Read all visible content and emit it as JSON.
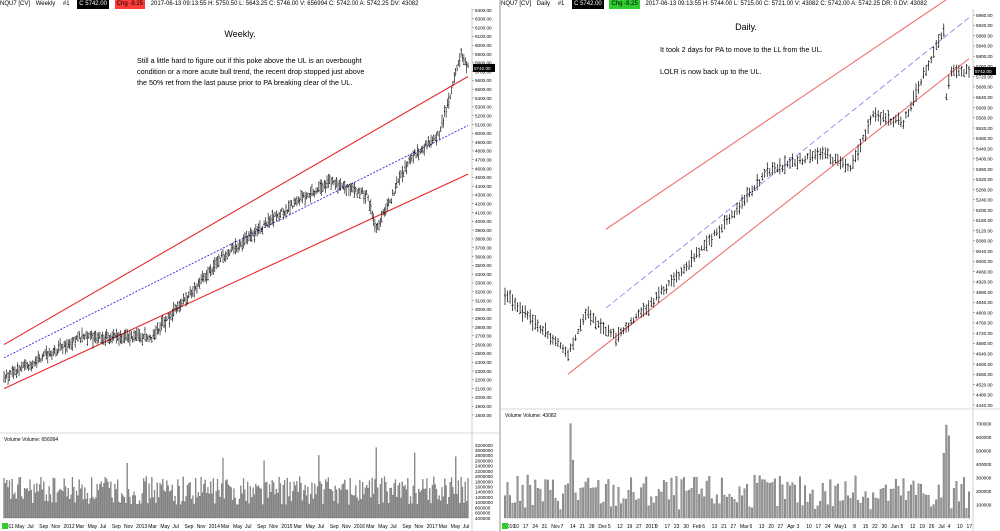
{
  "colors": {
    "channel_line": "#e8262b",
    "channel_line_daily": "#f07070",
    "midline_weekly": "#2a2ad6",
    "midline_daily": "#8a8af0",
    "bars": "#000000",
    "volume": "#9a9a9a",
    "price_badge": "#000000",
    "chip_red": "#ff3b3b",
    "chip_green": "#2ecc2e"
  },
  "weekly": {
    "header": {
      "symbol": "NQU7 [CV]",
      "timeframe": "Weekly",
      "chip1": "#1",
      "chip2": "C 5742.00",
      "chip3": "Chg -9.25",
      "stats": "2017-06-13 09:13:55  H: 5750.50  L: 5643.25  C: 5746.00  V: 656994  C: 5742.00  A: 5742.25  DV: 43082"
    },
    "annotation_title": "Weekly.",
    "annotation_lines": [
      "Still a little hard to figure out if this poke above the UL is an overbought",
      "condition or a more acute bull trend, the recent drop stopped just above",
      "the 50% ret from the last pause prior to PA breaking clear of the UL."
    ],
    "volume_label": "Volume  Volume: 656994",
    "last_price": "5742.00",
    "price_axis": {
      "min": 1800,
      "max": 6400,
      "step": 100
    },
    "volume_axis": {
      "labels": [
        "3200000",
        "3000000",
        "2800000",
        "2600000",
        "2400000",
        "2200000",
        "2000000",
        "1800000",
        "1600000",
        "1400000",
        "1200000",
        "1000000",
        "800000",
        "600000",
        "400000"
      ],
      "min": 400000,
      "max": 3200000
    },
    "x_labels": [
      "2011",
      "May",
      "Jul",
      "Sep",
      "Nov",
      "2012",
      "Mar",
      "May",
      "Jul",
      "Sep",
      "Nov",
      "2013",
      "Mar",
      "May",
      "Jul",
      "Sep",
      "Nov",
      "2014",
      "Mar",
      "May",
      "Jul",
      "Sep",
      "Nov",
      "2015",
      "Mar",
      "May",
      "Jul",
      "Sep",
      "Nov",
      "2016",
      "Mar",
      "May",
      "Jul",
      "Sep",
      "Nov",
      "2017",
      "Mar",
      "May",
      "Jul"
    ]
  },
  "daily": {
    "header": {
      "symbol": "NQU7 [CV]",
      "timeframe": "Daily",
      "chip1": "#1",
      "chip2": "C 5742.00",
      "chip3": "Chg -9.25",
      "stats": "2017-06-13 09:13:55  H: 5744.00  L: 5715.00  C: 5721.00  V: 43082  C: 5742.00  A: 5742.25  DR: 0  DV: 43082"
    },
    "annotation_title": "Daily.",
    "annotation_lines": [
      "It took 2 days for PA to move to the LL from the UL.",
      "",
      "LOLR is now back up to the UL."
    ],
    "volume_label": "Volume  Volume: 43082",
    "last_price": "5742.00",
    "price_axis": {
      "min": 4440,
      "max": 5980,
      "step": 40
    },
    "volume_axis": {
      "labels": [
        "700000",
        "600000",
        "500000",
        "400000",
        "300000",
        "200000",
        "100000"
      ],
      "min": 0,
      "max": 720000
    },
    "x_labels": [
      "2016",
      "10",
      "17",
      "24",
      "31",
      "Nov",
      "7",
      "14",
      "21",
      "28",
      "Dec",
      "5",
      "12",
      "19",
      "27",
      "2017",
      "9",
      "17",
      "23",
      "30",
      "Feb",
      "6",
      "13",
      "21",
      "27",
      "Mar",
      "6",
      "13",
      "20",
      "27",
      "Apr",
      "3",
      "10",
      "17",
      "24",
      "May",
      "1",
      "8",
      "15",
      "22",
      "30",
      "Jun",
      "5",
      "12",
      "19",
      "26",
      "Jul",
      "4",
      "10",
      "17"
    ]
  },
  "chart_data": [
    {
      "type": "candlestick",
      "title": "Weekly.",
      "timeframe": "Weekly",
      "x_range": [
        "2011",
        "Jul 2017"
      ],
      "ylim": [
        1800,
        6400
      ],
      "price_anchor_points": [
        {
          "x": "2011",
          "y": 2220
        },
        {
          "x": "Jan 2012",
          "y": 2680
        },
        {
          "x": "Jan 2013",
          "y": 2690
        },
        {
          "x": "Jan 2014",
          "y": 3600
        },
        {
          "x": "Jan 2015",
          "y": 4200
        },
        {
          "x": "Jul 2015",
          "y": 4450
        },
        {
          "x": "Jan 2016",
          "y": 4300
        },
        {
          "x": "Feb 2016",
          "y": 3900
        },
        {
          "x": "Jul 2016",
          "y": 4700
        },
        {
          "x": "Jan 2017",
          "y": 4990
        },
        {
          "x": "Jun 2017",
          "y": 5900
        },
        {
          "x": "Jun 2017 last",
          "y": 5742
        }
      ],
      "channel": {
        "upper": [
          {
            "x": "2011",
            "y": 2600
          },
          {
            "x": "Jun 2017",
            "y": 5600
          }
        ],
        "mid": [
          {
            "x": "2011",
            "y": 2450
          },
          {
            "x": "Jun 2017",
            "y": 5050
          }
        ],
        "lower": [
          {
            "x": "2011",
            "y": 2100
          },
          {
            "x": "Jun 2017",
            "y": 4500
          }
        ]
      },
      "volume_range": [
        400000,
        3200000
      ]
    },
    {
      "type": "candlestick",
      "title": "Daily.",
      "timeframe": "Daily",
      "x_range": [
        "Oct 2016",
        "Jul 2017"
      ],
      "ylim": [
        4440,
        5980
      ],
      "price_anchor_points": [
        {
          "x": "Oct 3 2016",
          "y": 4870
        },
        {
          "x": "Nov 4 2016",
          "y": 4640
        },
        {
          "x": "Nov 14 2016",
          "y": 4800
        },
        {
          "x": "Dec 1 2016",
          "y": 4700
        },
        {
          "x": "Jan 2 2017",
          "y": 4890
        },
        {
          "x": "Feb 1 2017",
          "y": 5110
        },
        {
          "x": "Mar 1 2017",
          "y": 5350
        },
        {
          "x": "Apr 1 2017",
          "y": 5420
        },
        {
          "x": "Apr 17 2017",
          "y": 5360
        },
        {
          "x": "May 1 2017",
          "y": 5570
        },
        {
          "x": "May 17 2017",
          "y": 5540
        },
        {
          "x": "Jun 8 2017",
          "y": 5910
        },
        {
          "x": "Jun 9 2017",
          "y": 5640
        },
        {
          "x": "Jun 13 2017",
          "y": 5742
        }
      ],
      "channel": {
        "upper": [
          {
            "x": "Oct 2016",
            "y": 4860
          },
          {
            "x": "Jul 2017",
            "y": 6080
          }
        ],
        "mid": [
          {
            "x": "Nov 4 2016",
            "y": 4700
          },
          {
            "x": "Jul 2017",
            "y": 5950
          }
        ],
        "lower": [
          {
            "x": "Nov 4 2016",
            "y": 4560
          },
          {
            "x": "Jul 2017",
            "y": 5790
          }
        ]
      },
      "volume_range": [
        0,
        720000
      ]
    }
  ]
}
